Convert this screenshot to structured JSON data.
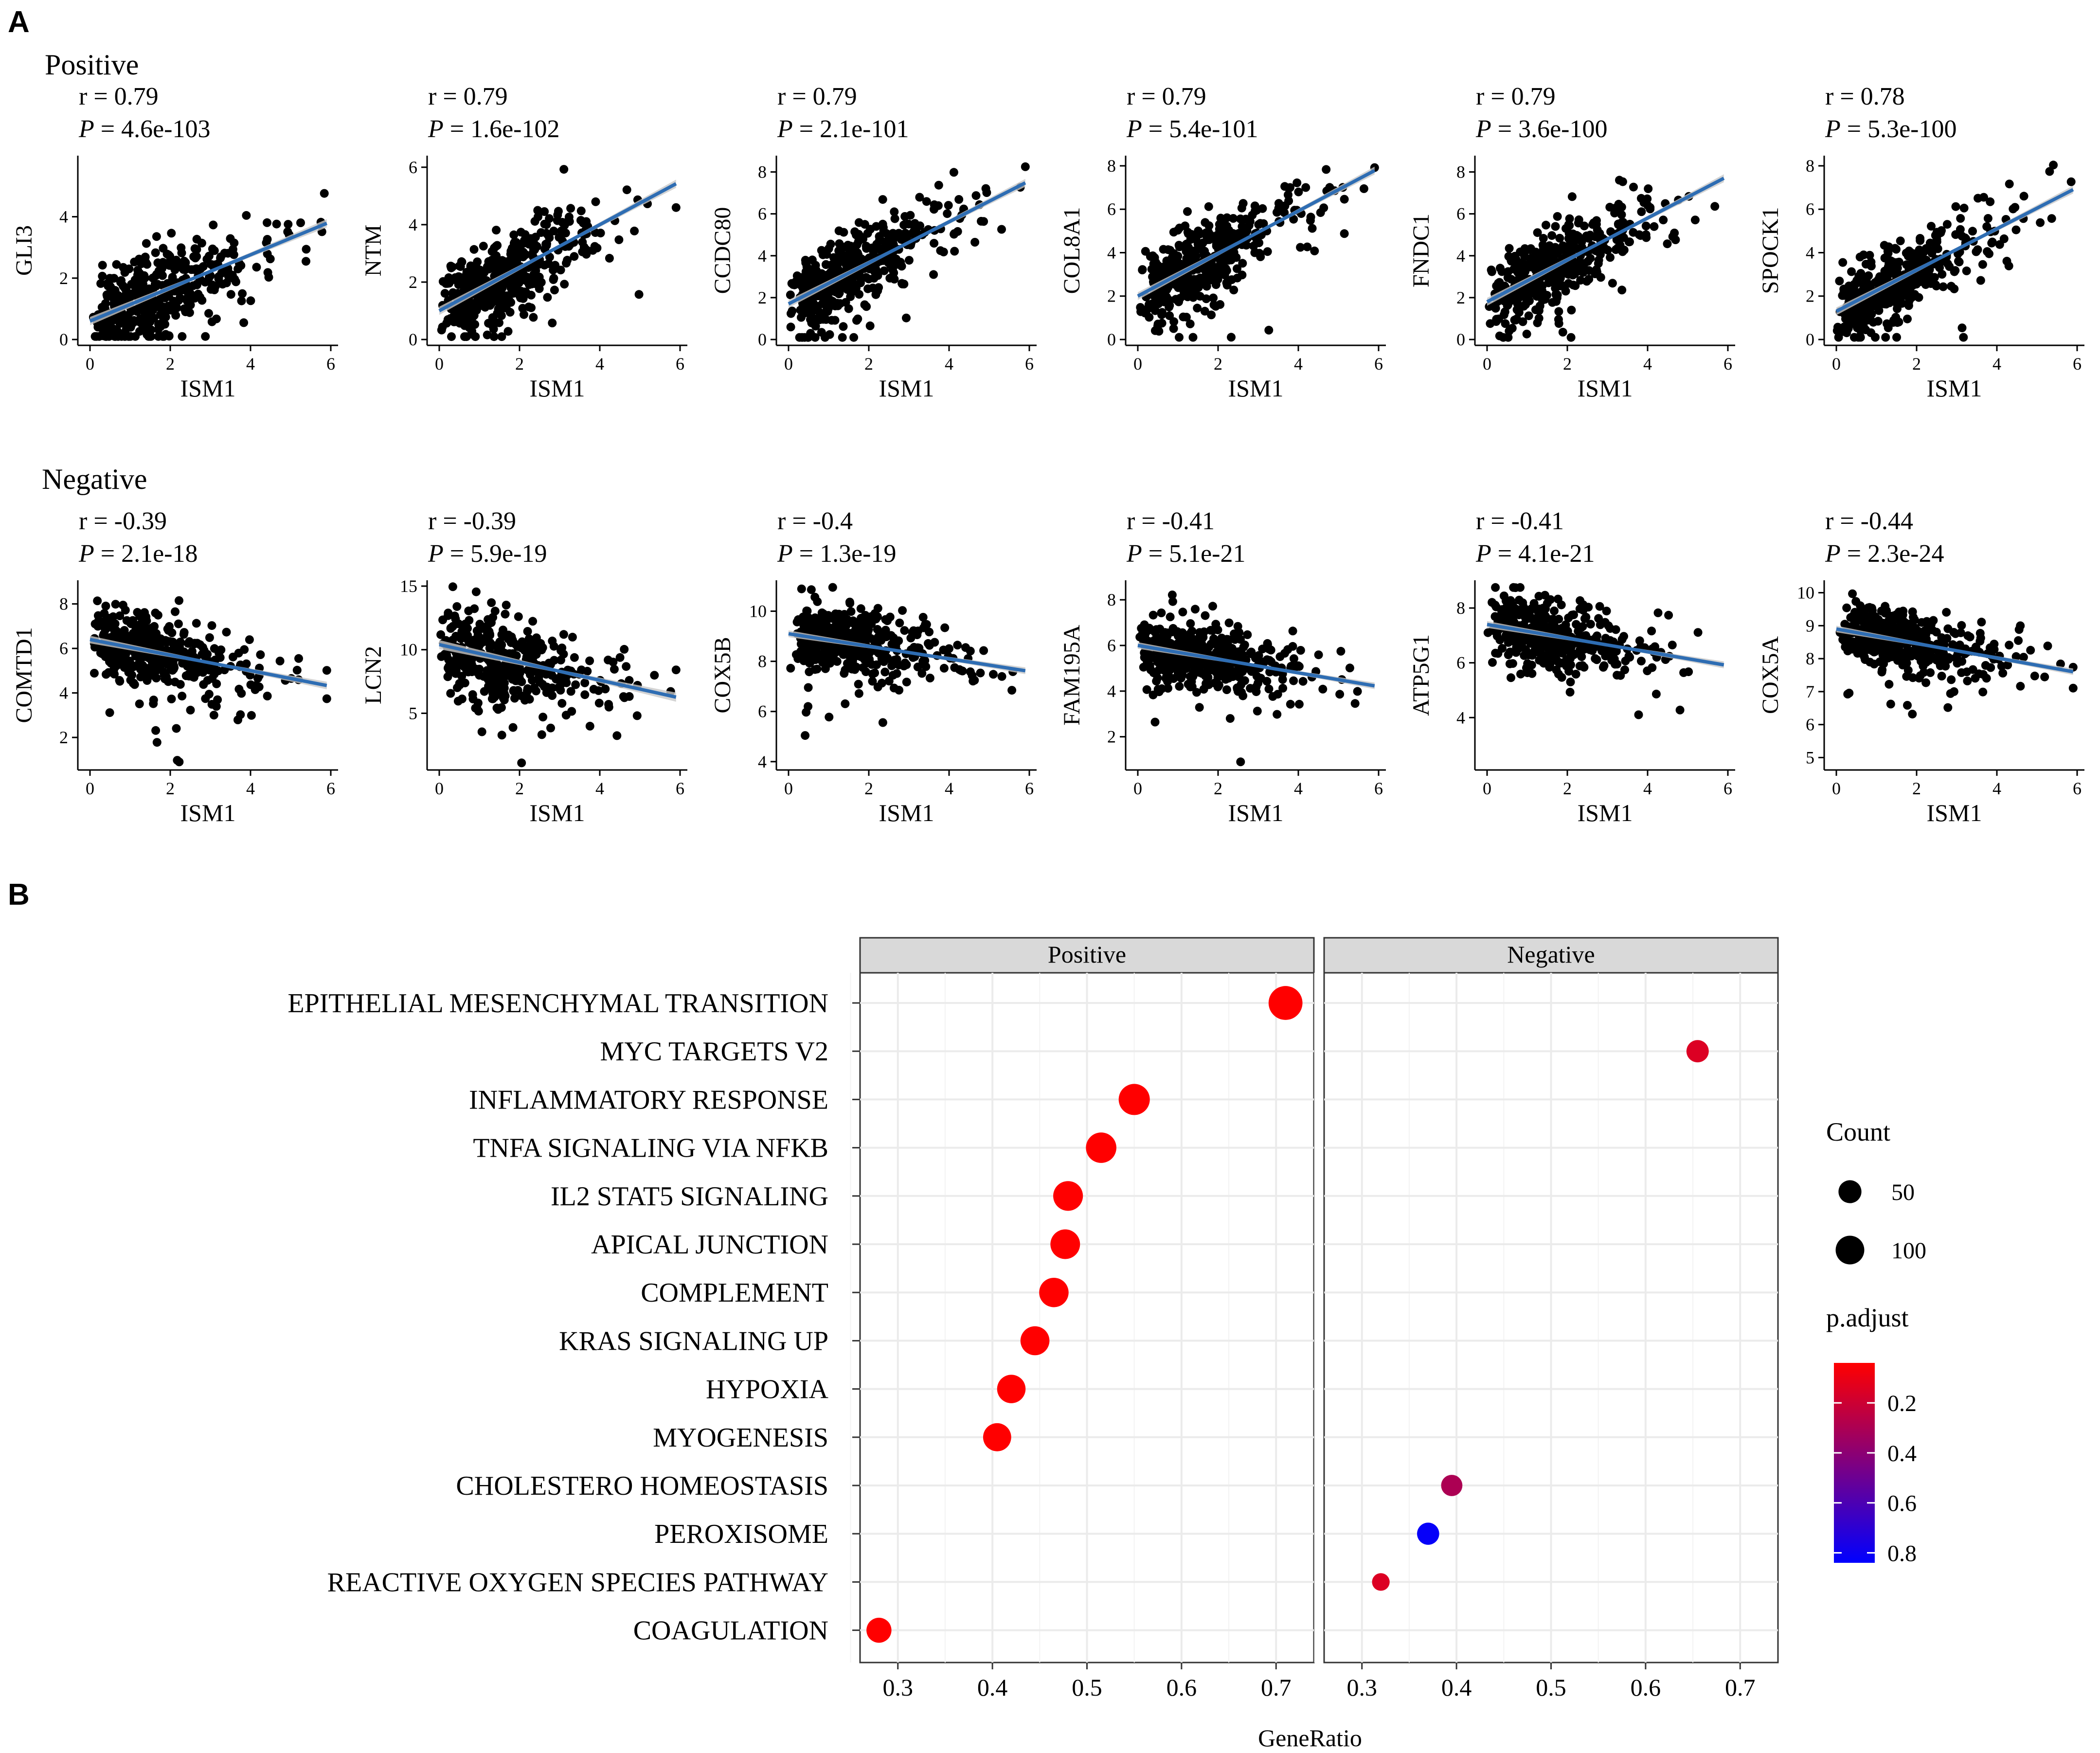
{
  "panels": {
    "A": "A",
    "B": "B"
  },
  "chart_data": [
    {
      "type": "scatter",
      "panel": "A",
      "groups": [
        {
          "title": "Positive",
          "plots": [
            {
              "gene": "GLI3",
              "r": "r = 0.79",
              "p": "4.6e-103",
              "xlabel": "ISM1",
              "xlim": [
                0,
                6
              ],
              "ylim": [
                0,
                5.8
              ],
              "xticks": [
                0,
                2,
                4,
                6
              ],
              "yticks": [
                0,
                2,
                4
              ],
              "slope": 0.54,
              "intercept": 0.6,
              "noise": 0.75,
              "seed": 11
            },
            {
              "gene": "NTM",
              "r": "r = 0.79",
              "p": "1.6e-102",
              "xlabel": "ISM1",
              "xlim": [
                0,
                6
              ],
              "ylim": [
                0,
                6.2
              ],
              "xticks": [
                0,
                2,
                4,
                6
              ],
              "yticks": [
                0,
                2,
                4,
                6
              ],
              "slope": 0.75,
              "intercept": 1.0,
              "noise": 0.8,
              "seed": 12
            },
            {
              "gene": "CCDC80",
              "r": "r = 0.79",
              "p": "2.1e-101",
              "xlabel": "ISM1",
              "xlim": [
                0,
                6
              ],
              "ylim": [
                0,
                8.5
              ],
              "xticks": [
                0,
                2,
                4,
                6
              ],
              "yticks": [
                0,
                2,
                4,
                6,
                8
              ],
              "slope": 0.98,
              "intercept": 1.7,
              "noise": 1.05,
              "seed": 13
            },
            {
              "gene": "COL8A1",
              "r": "r = 0.79",
              "p": "5.4e-101",
              "xlabel": "ISM1",
              "xlim": [
                0,
                6
              ],
              "ylim": [
                0,
                8.2
              ],
              "xticks": [
                0,
                2,
                4,
                6
              ],
              "yticks": [
                0,
                2,
                4,
                6,
                8
              ],
              "slope": 0.98,
              "intercept": 2.0,
              "noise": 1.0,
              "seed": 14
            },
            {
              "gene": "FNDC1",
              "r": "r = 0.79",
              "p": "3.6e-100",
              "xlabel": "ISM1",
              "xlim": [
                0,
                6
              ],
              "ylim": [
                0,
                8.5
              ],
              "xticks": [
                0,
                2,
                4,
                6
              ],
              "yticks": [
                0,
                2,
                4,
                6,
                8
              ],
              "slope": 1.0,
              "intercept": 1.8,
              "noise": 1.05,
              "seed": 15
            },
            {
              "gene": "SPOCK1",
              "r": "r = 0.78",
              "p": "5.3e-100",
              "xlabel": "ISM1",
              "xlim": [
                0,
                6
              ],
              "ylim": [
                0,
                8.2
              ],
              "xticks": [
                0,
                2,
                4,
                6
              ],
              "yticks": [
                0,
                2,
                4,
                6,
                8
              ],
              "slope": 0.95,
              "intercept": 1.3,
              "noise": 1.0,
              "seed": 16
            }
          ]
        },
        {
          "title": "Negative",
          "plots": [
            {
              "gene": "COMTD1",
              "r": "r = -0.39",
              "p": "2.1e-18",
              "xlabel": "ISM1",
              "xlim": [
                0,
                6
              ],
              "ylim": [
                0.8,
                8.8
              ],
              "xticks": [
                0,
                2,
                4,
                6
              ],
              "yticks": [
                2,
                4,
                6,
                8
              ],
              "slope": -0.35,
              "intercept": 6.4,
              "noise": 0.95,
              "seed": 21
            },
            {
              "gene": "LCN2",
              "r": "r = -0.39",
              "p": "5.9e-19",
              "xlabel": "ISM1",
              "xlim": [
                0,
                6
              ],
              "ylim": [
                1,
                15
              ],
              "xticks": [
                0,
                2,
                4,
                6
              ],
              "yticks": [
                5,
                10,
                15
              ],
              "slope": -0.7,
              "intercept": 10.4,
              "noise": 2.0,
              "seed": 22
            },
            {
              "gene": "COX5B",
              "r": "r = -0.4",
              "p": "1.3e-19",
              "xlabel": "ISM1",
              "xlim": [
                0,
                6
              ],
              "ylim": [
                3.9,
                11
              ],
              "xticks": [
                0,
                2,
                4,
                6
              ],
              "yticks": [
                4,
                6,
                8,
                10
              ],
              "slope": -0.25,
              "intercept": 9.1,
              "noise": 0.75,
              "seed": 23
            },
            {
              "gene": "FAM195A",
              "r": "r = -0.41",
              "p": "5.1e-21",
              "xlabel": "ISM1",
              "xlim": [
                0,
                6
              ],
              "ylim": [
                0.8,
                8.6
              ],
              "xticks": [
                0,
                2,
                4,
                6
              ],
              "yticks": [
                2,
                4,
                6,
                8
              ],
              "slope": -0.3,
              "intercept": 6.0,
              "noise": 0.8,
              "seed": 24
            },
            {
              "gene": "ATP5G1",
              "r": "r = -0.41",
              "p": "4.1e-21",
              "xlabel": "ISM1",
              "xlim": [
                0,
                6
              ],
              "ylim": [
                2.3,
                8.8
              ],
              "xticks": [
                0,
                2,
                4,
                6
              ],
              "yticks": [
                4,
                6,
                8
              ],
              "slope": -0.25,
              "intercept": 7.4,
              "noise": 0.7,
              "seed": 25
            },
            {
              "gene": "COX5A",
              "r": "r = -0.44",
              "p": "2.3e-24",
              "xlabel": "ISM1",
              "xlim": [
                0,
                6
              ],
              "ylim": [
                4.8,
                10.2
              ],
              "xticks": [
                0,
                2,
                4,
                6
              ],
              "yticks": [
                5,
                6,
                7,
                8,
                9,
                10
              ],
              "slope": -0.22,
              "intercept": 8.9,
              "noise": 0.55,
              "seed": 26
            }
          ]
        }
      ]
    },
    {
      "type": "scatter",
      "panel": "B",
      "subtype": "dot-plot",
      "xlabel": "GeneRatio",
      "terms": [
        "EPITHELIAL MESENCHYMAL TRANSITION",
        "MYC TARGETS V2",
        "INFLAMMATORY RESPONSE",
        "TNFA SIGNALING VIA NFKB",
        "IL2 STAT5 SIGNALING",
        "APICAL JUNCTION",
        "COMPLEMENT",
        "KRAS SIGNALING UP",
        "HYPOXIA",
        "MYOGENESIS",
        "CHOLESTERO HOMEOSTASIS",
        "PEROXISOME",
        "REACTIVE OXYGEN SPECIES PATHWAY",
        "COAGULATION"
      ],
      "facets": [
        {
          "label": "Positive",
          "xlim": [
            0.26,
            0.74
          ],
          "xticks": [
            0.3,
            0.4,
            0.5,
            0.6,
            0.7
          ],
          "xtick_labels": [
            "0.3",
            "0.4",
            "0.5",
            "0.6",
            "0.7"
          ],
          "points": [
            {
              "term": "EPITHELIAL MESENCHYMAL TRANSITION",
              "ratio": 0.71,
              "count": 140,
              "padj": 0.03
            },
            {
              "term": "INFLAMMATORY RESPONSE",
              "ratio": 0.55,
              "count": 110,
              "padj": 0.03
            },
            {
              "term": "TNFA SIGNALING VIA NFKB",
              "ratio": 0.515,
              "count": 103,
              "padj": 0.03
            },
            {
              "term": "IL2 STAT5 SIGNALING",
              "ratio": 0.48,
              "count": 96,
              "padj": 0.03
            },
            {
              "term": "APICAL JUNCTION",
              "ratio": 0.477,
              "count": 95,
              "padj": 0.03
            },
            {
              "term": "COMPLEMENT",
              "ratio": 0.465,
              "count": 93,
              "padj": 0.03
            },
            {
              "term": "KRAS SIGNALING UP",
              "ratio": 0.445,
              "count": 89,
              "padj": 0.03
            },
            {
              "term": "HYPOXIA",
              "ratio": 0.42,
              "count": 84,
              "padj": 0.03
            },
            {
              "term": "MYOGENESIS",
              "ratio": 0.405,
              "count": 81,
              "padj": 0.03
            },
            {
              "term": "COAGULATION",
              "ratio": 0.28,
              "count": 56,
              "padj": 0.03
            }
          ]
        },
        {
          "label": "Negative",
          "xlim": [
            0.26,
            0.74
          ],
          "xticks": [
            0.3,
            0.4,
            0.5,
            0.6,
            0.7
          ],
          "xtick_labels": [
            "0.3",
            "0.4",
            "0.5",
            "0.6",
            "0.7"
          ],
          "points": [
            {
              "term": "MYC TARGETS V2",
              "ratio": 0.655,
              "count": 38,
              "padj": 0.15
            },
            {
              "term": "CHOLESTERO HOMEOSTASIS",
              "ratio": 0.395,
              "count": 32,
              "padj": 0.3
            },
            {
              "term": "PEROXISOME",
              "ratio": 0.37,
              "count": 37,
              "padj": 0.82
            },
            {
              "term": "REACTIVE OXYGEN SPECIES PATHWAY",
              "ratio": 0.32,
              "count": 15,
              "padj": 0.15
            }
          ]
        }
      ],
      "legend": {
        "size_title": "Count",
        "size_values": [
          50,
          100
        ],
        "size_labels": [
          "50",
          "100"
        ],
        "color_title": "p.adjust",
        "color_ticks": [
          0.2,
          0.4,
          0.6,
          0.8
        ],
        "color_labels": [
          "0.2",
          "0.4",
          "0.6",
          "0.8"
        ],
        "color_range": [
          0.04,
          0.84
        ],
        "color_low": "#ff0000",
        "color_high": "#0000ff"
      }
    }
  ],
  "colors": {
    "point": "#000000",
    "fit_line": "#2e6db3",
    "fit_band": "#c8c8c8",
    "strip_fill": "#d9d9d9",
    "grid": "#ebebeb"
  }
}
